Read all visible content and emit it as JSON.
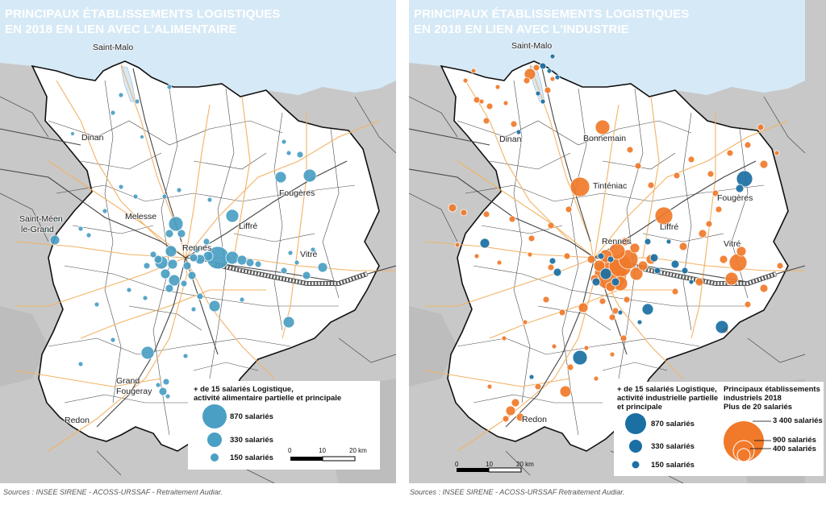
{
  "left": {
    "title_line1": "PRINCIPAUX ÉTABLISSEMENTS LOGISTIQUES",
    "title_line2": "EN 2018 EN LIEN AVEC L'ALIMENTAIRE",
    "towns": {
      "saint_malo": "Saint-Malo",
      "dinan": "Dinan",
      "fougeres": "Fougères",
      "saint_meen_1": "Saint-Méen",
      "saint_meen_2": "le-Grand",
      "melesse": "Melesse",
      "liffre": "Liffré",
      "rennes": "Rennes",
      "vitre": "Vitré",
      "grand_fougeray_1": "Grand",
      "grand_fougeray_2": "Fougeray",
      "redon": "Redon"
    },
    "legend": {
      "title_line1": "+ de 15 salariés Logistique,",
      "title_line2": "activité alimentaire partielle et principale",
      "size_large": "870 salariés",
      "size_medium": "330 salariés",
      "size_small": "150 salariés"
    },
    "scale": {
      "t0": "0",
      "t1": "10",
      "t2": "20 km"
    },
    "source": "Sources : INSEE SIRENE - ACOSS-URSSAF - Retraitement Audiar."
  },
  "right": {
    "title_line1": "PRINCIPAUX ÉTABLISSEMENTS LOGISTIQUES",
    "title_line2": "EN 2018 EN LIEN AVEC L'INDUSTRIE",
    "towns": {
      "saint_malo": "Saint-Malo",
      "dinan": "Dinan",
      "bonnemain": "Bonnemain",
      "tinteniac": "Tinténiac",
      "fougeres": "Fougères",
      "liffre": "Liffré",
      "rennes": "Rennes",
      "vitre": "Vitré",
      "redon": "Redon"
    },
    "legend": {
      "title_line1": "+ de 15 salariés Logistique,",
      "title_line2": "activité industrielle partielle",
      "title_line3": "et principale",
      "size_large": "870 salariés",
      "size_medium": "330 salariés",
      "size_small": "150 salariés",
      "ind_title_line1": "Principaux établissements",
      "ind_title_line2": "industriels 2018",
      "ind_title_line3": "Plus de 20 salariés",
      "ind_large": "3 400 salariés",
      "ind_medium": "900 salariés",
      "ind_small": "400 salariés"
    },
    "scale": {
      "t0": "0",
      "t1": "10",
      "t2": "20 km"
    },
    "source": "Sources : INSEE SIRENE - ACOSS-URSSAF Retraitement Audiar."
  },
  "colors": {
    "sea": "#d6e9f6",
    "land_outside": "#c8c8c8",
    "department": "#ffffff",
    "commune_border": "#2a2a2a",
    "roads": "#f2b366",
    "railways": "#444444",
    "logistics_food": "#4a9fc4",
    "logistics_industry": "#1a6fa3",
    "industry": "#f07a2a"
  }
}
